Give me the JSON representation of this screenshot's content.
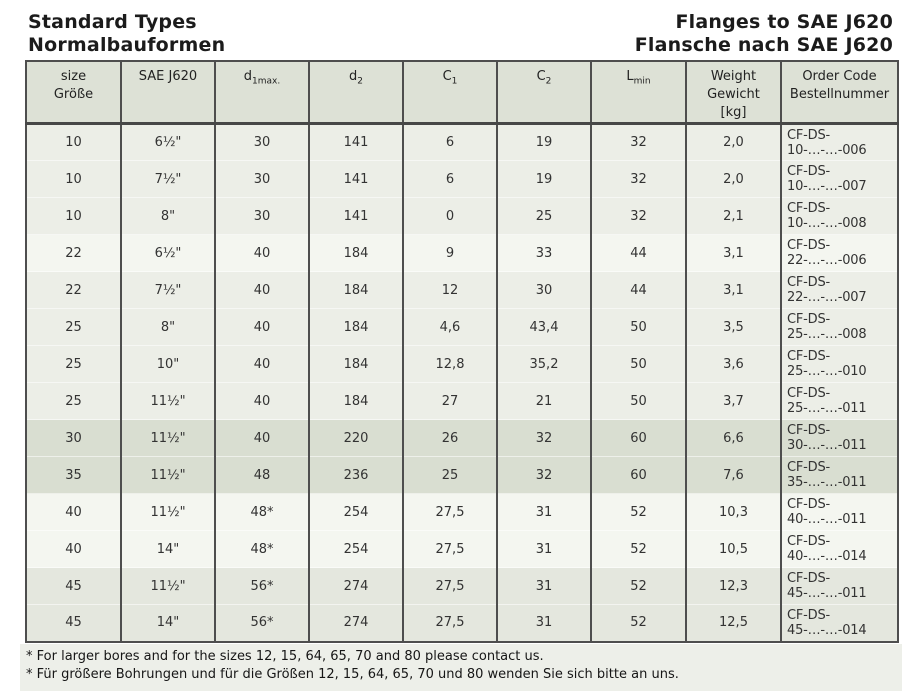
{
  "titles": {
    "left1": "Standard Types",
    "left2": "Normalbauformen",
    "right1": "Flanges to SAE J620",
    "right2": "Flansche nach SAE J620"
  },
  "table": {
    "headers": [
      {
        "line1": "size",
        "line2": "Größe"
      },
      {
        "line1": "SAE J620"
      },
      {
        "base": "d",
        "sub": "1max."
      },
      {
        "base": "d",
        "sub": "2"
      },
      {
        "base": "C",
        "sub": "1"
      },
      {
        "base": "C",
        "sub": "2"
      },
      {
        "base": "L",
        "sub": "min"
      },
      {
        "line1": "Weight",
        "line2": "Gewicht",
        "line3": "[kg]"
      },
      {
        "line1": "Order Code",
        "line2": "Bestellnummer"
      }
    ],
    "rows": [
      {
        "size": "10",
        "sae": "6½\"",
        "d1max": "30",
        "d2": "141",
        "c1": "6",
        "c2": "19",
        "lmin": "32",
        "weight": "2,0",
        "code": "CF-DS-10-…-…-006",
        "shade": "a"
      },
      {
        "size": "10",
        "sae": "7½\"",
        "d1max": "30",
        "d2": "141",
        "c1": "6",
        "c2": "19",
        "lmin": "32",
        "weight": "2,0",
        "code": "CF-DS-10-…-…-007",
        "shade": "a"
      },
      {
        "size": "10",
        "sae": "8\"",
        "d1max": "30",
        "d2": "141",
        "c1": "0",
        "c2": "25",
        "lmin": "32",
        "weight": "2,1",
        "code": "CF-DS-10-…-…-008",
        "shade": "a"
      },
      {
        "size": "22",
        "sae": "6½\"",
        "d1max": "40",
        "d2": "184",
        "c1": "9",
        "c2": "33",
        "lmin": "44",
        "weight": "3,1",
        "code": "CF-DS-22-…-…-006",
        "shade": "b"
      },
      {
        "size": "22",
        "sae": "7½\"",
        "d1max": "40",
        "d2": "184",
        "c1": "12",
        "c2": "30",
        "lmin": "44",
        "weight": "3,1",
        "code": "CF-DS-22-…-…-007",
        "shade": "a"
      },
      {
        "size": "25",
        "sae": "8\"",
        "d1max": "40",
        "d2": "184",
        "c1": "4,6",
        "c2": "43,4",
        "lmin": "50",
        "weight": "3,5",
        "code": "CF-DS-25-…-…-008",
        "shade": "a"
      },
      {
        "size": "25",
        "sae": "10\"",
        "d1max": "40",
        "d2": "184",
        "c1": "12,8",
        "c2": "35,2",
        "lmin": "50",
        "weight": "3,6",
        "code": "CF-DS-25-…-…-010",
        "shade": "a"
      },
      {
        "size": "25",
        "sae": "11½\"",
        "d1max": "40",
        "d2": "184",
        "c1": "27",
        "c2": "21",
        "lmin": "50",
        "weight": "3,7",
        "code": "CF-DS-25-…-…-011",
        "shade": "a"
      },
      {
        "size": "30",
        "sae": "11½\"",
        "d1max": "40",
        "d2": "220",
        "c1": "26",
        "c2": "32",
        "lmin": "60",
        "weight": "6,6",
        "code": "CF-DS-30-…-…-011",
        "shade": "c"
      },
      {
        "size": "35",
        "sae": "11½\"",
        "d1max": "48",
        "d2": "236",
        "c1": "25",
        "c2": "32",
        "lmin": "60",
        "weight": "7,6",
        "code": "CF-DS-35-…-…-011",
        "shade": "c"
      },
      {
        "size": "40",
        "sae": "11½\"",
        "d1max": "48*",
        "d2": "254",
        "c1": "27,5",
        "c2": "31",
        "lmin": "52",
        "weight": "10,3",
        "code": "CF-DS-40-…-…-011",
        "shade": "b"
      },
      {
        "size": "40",
        "sae": "14\"",
        "d1max": "48*",
        "d2": "254",
        "c1": "27,5",
        "c2": "31",
        "lmin": "52",
        "weight": "10,5",
        "code": "CF-DS-40-…-…-014",
        "shade": "b"
      },
      {
        "size": "45",
        "sae": "11½\"",
        "d1max": "56*",
        "d2": "274",
        "c1": "27,5",
        "c2": "31",
        "lmin": "52",
        "weight": "12,3",
        "code": "CF-DS-45-…-…-011",
        "shade": "d"
      },
      {
        "size": "45",
        "sae": "14\"",
        "d1max": "56*",
        "d2": "274",
        "c1": "27,5",
        "c2": "31",
        "lmin": "52",
        "weight": "12,5",
        "code": "CF-DS-45-…-…-014",
        "shade": "d"
      }
    ]
  },
  "footnotes": [
    "* For larger bores and for the sizes 12, 15, 64, 65, 70 and 80 please contact us.",
    "* Für größere Bohrungen und für die Größen 12, 15, 64, 65, 70 und 80 wenden Sie sich bitte an uns."
  ],
  "colors": {
    "header_bg": "#dde1d6",
    "shade_a": "#eceee7",
    "shade_b": "#f4f6f0",
    "shade_c": "#d9ded1",
    "shade_d": "#e4e7de",
    "footnote_bg": "#edefe9",
    "border": "#4e4e4e",
    "title_text": "#1b1b1b"
  }
}
